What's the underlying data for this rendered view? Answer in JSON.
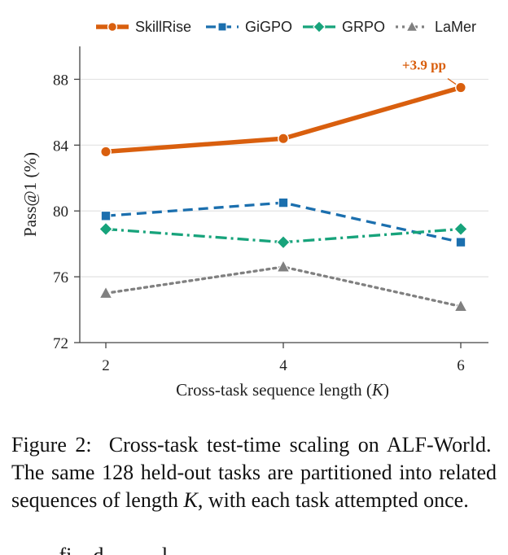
{
  "chart_data": {
    "type": "line",
    "x": [
      2,
      4,
      6
    ],
    "xlabel_main": "Cross-task sequence length (",
    "xlabel_var": "K",
    "xlabel_close": ")",
    "ylabel": "Pass@1 (%)",
    "ylim": [
      72,
      90
    ],
    "yticks": [
      72,
      76,
      80,
      84,
      88
    ],
    "xticks": [
      2,
      4,
      6
    ],
    "grid": "horizontal",
    "legend_position": "top",
    "series": [
      {
        "name": "SkillRise",
        "values": [
          83.6,
          84.4,
          87.5
        ],
        "color": "#d95f0e",
        "style": "solid",
        "marker": "circle"
      },
      {
        "name": "GiGPO",
        "values": [
          79.7,
          80.5,
          78.1
        ],
        "color": "#1b6fae",
        "style": "dashed",
        "marker": "square"
      },
      {
        "name": "GRPO",
        "values": [
          78.9,
          78.1,
          78.9
        ],
        "color": "#17a37b",
        "style": "dashdot",
        "marker": "diamond"
      },
      {
        "name": "LaMer",
        "values": [
          75.0,
          76.6,
          74.2
        ],
        "color": "#808080",
        "style": "dotted",
        "marker": "triangle"
      }
    ],
    "annotations": [
      {
        "text": "+3.9 pp",
        "x": 6,
        "y": 87.5,
        "color": "#d95f0e"
      }
    ]
  },
  "caption": {
    "line1_pre": "Figure 2:  Cross-task test-time scaling on ALF-World.  The same 128 held-out tasks are partitioned into related sequences of length ",
    "var": "K",
    "line1_post": ", with each task attempted once."
  },
  "stub_text": "         fi    d           l"
}
